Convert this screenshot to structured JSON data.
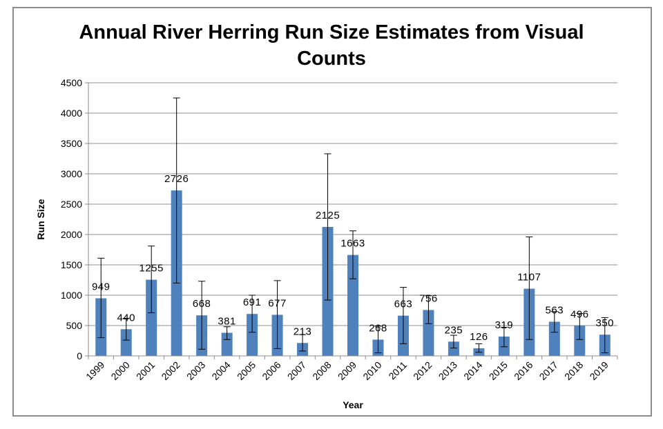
{
  "chart_data": {
    "type": "bar",
    "title": "Annual River Herring Run Size Estimates from Visual Counts",
    "xlabel": "Year",
    "ylabel": "Run Size",
    "ylim": [
      0,
      4500
    ],
    "yticks": [
      0,
      500,
      1000,
      1500,
      2000,
      2500,
      3000,
      3500,
      4000,
      4500
    ],
    "grid": true,
    "bar_color": "#4f81bd",
    "categories": [
      "1999",
      "2000",
      "2001",
      "2002",
      "2003",
      "2004",
      "2005",
      "2006",
      "2007",
      "2008",
      "2009",
      "2010",
      "2011",
      "2012",
      "2013",
      "2014",
      "2015",
      "2016",
      "2017",
      "2018",
      "2019"
    ],
    "values": [
      949,
      440,
      1255,
      2726,
      668,
      381,
      691,
      677,
      213,
      2125,
      1663,
      268,
      663,
      756,
      235,
      126,
      319,
      1107,
      563,
      496,
      350
    ],
    "data_labels": [
      "949",
      "440",
      "1255",
      "2726",
      "668",
      "381",
      "691",
      "677",
      "213",
      "2125",
      "1663",
      "268",
      "663",
      "756",
      "235",
      "126",
      "319",
      "1107",
      "563",
      "496",
      "350"
    ],
    "error_low": [
      300,
      260,
      710,
      1200,
      110,
      270,
      390,
      120,
      80,
      920,
      1270,
      50,
      200,
      530,
      130,
      60,
      150,
      270,
      390,
      270,
      50
    ],
    "error_high": [
      1610,
      620,
      1810,
      4250,
      1230,
      480,
      1000,
      1240,
      350,
      3330,
      2060,
      490,
      1130,
      990,
      340,
      200,
      470,
      1960,
      730,
      700,
      630
    ]
  }
}
